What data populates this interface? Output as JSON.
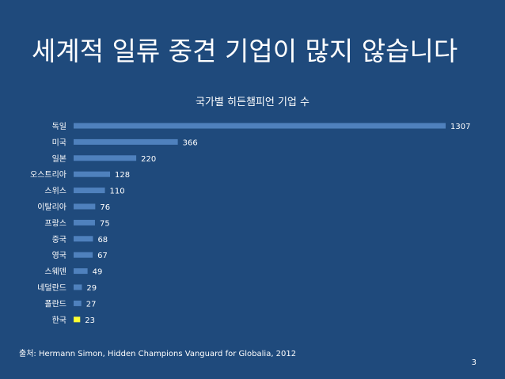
{
  "slide": {
    "title": "세계적 일류 중견 기업이 많지 않습니다",
    "source": "출처: Hermann Simon, Hidden Champions Vanguard for Globalia, 2012",
    "page_number": "3"
  },
  "colors": {
    "background": "#1f4a7c",
    "bar": "#4f81bd",
    "highlight": "#ffff33",
    "text": "#ffffff"
  },
  "chart_data": {
    "type": "bar",
    "orientation": "horizontal",
    "title": "국가별 히든챔피언 기업 수",
    "categories": [
      "독일",
      "미국",
      "일본",
      "오스트리아",
      "스위스",
      "이탈리아",
      "프랑스",
      "중국",
      "영국",
      "스웨덴",
      "네덜란드",
      "폴란드",
      "한국"
    ],
    "values": [
      1307,
      366,
      220,
      128,
      110,
      76,
      75,
      68,
      67,
      49,
      29,
      27,
      23
    ],
    "highlight_category": "한국",
    "xlabel": "",
    "ylabel": "",
    "xlim": [
      0,
      1307
    ],
    "grid": false
  }
}
